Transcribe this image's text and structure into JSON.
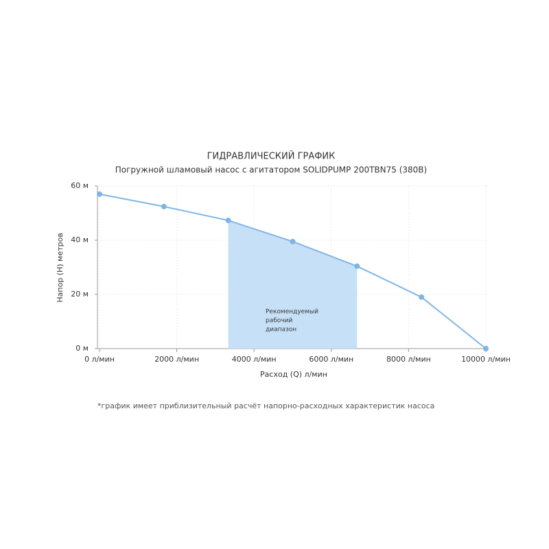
{
  "chart_data": {
    "type": "line",
    "title": "ГИДРАВЛИЧЕСКИЙ ГРАФИК",
    "subtitle": "Погружной шламовый насос с агитатором SOLIDPUMP 200TBN75 (380В)",
    "x_label": "Расход (Q) л/мин",
    "y_label": "Напор (H) метров",
    "x": [
      0,
      1667,
      3333,
      5000,
      6667,
      8333,
      10000
    ],
    "series": [
      {
        "color": "#7fb5e6",
        "values": [
          57,
          52.4,
          47.3,
          39.5,
          30.4,
          19,
          0
        ]
      }
    ],
    "highlight": {
      "from": 3333,
      "to": 6667,
      "color": "#c6e0f7",
      "label_lines": [
        "Рекомендуемый",
        "рабочий",
        "диапазон"
      ]
    },
    "xlim": [
      0,
      10000
    ],
    "xticks": [
      {
        "value": 0,
        "label": "0 л/мин"
      },
      {
        "value": 2000,
        "label": "2000 л/мин"
      },
      {
        "value": 4000,
        "label": "4000 л/мин"
      },
      {
        "value": 6000,
        "label": "6000 л/мин"
      },
      {
        "value": 8000,
        "label": "8000 л/мин"
      },
      {
        "value": 10000,
        "label": "10000 л/мин"
      }
    ],
    "ylim": [
      0,
      60
    ],
    "yticks": [
      {
        "value": 0,
        "label": "0 м"
      },
      {
        "value": 20,
        "label": "20 м"
      },
      {
        "value": 40,
        "label": "40 м"
      },
      {
        "value": 60,
        "label": "60 м"
      }
    ],
    "grid": true,
    "footnote": "*график имеет приблизительный расчёт напорно-расходных характеристик насоса"
  }
}
